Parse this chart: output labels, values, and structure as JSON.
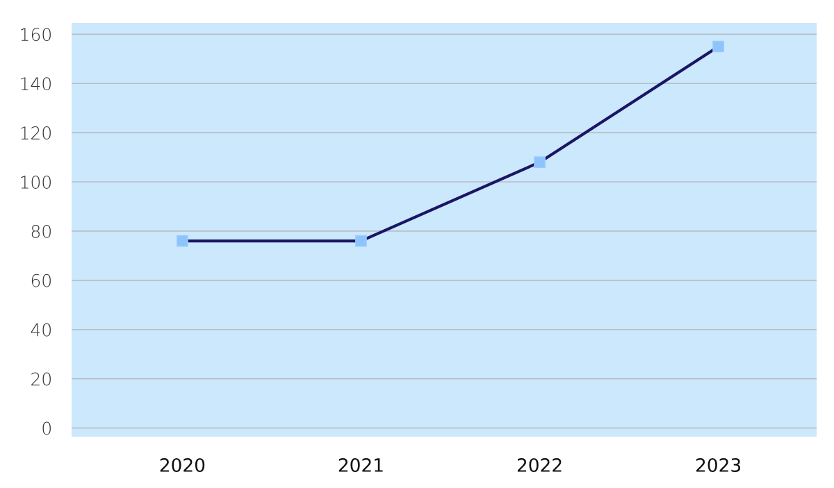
{
  "chart_data": {
    "type": "line",
    "categories": [
      "2020",
      "2021",
      "2022",
      "2023"
    ],
    "series": [
      {
        "color": "#1b1565",
        "values": [
          76,
          76,
          108,
          155
        ]
      }
    ],
    "marker": "square",
    "line_style": "solid",
    "grid": "y",
    "ylim": [
      -3.5,
      164.6
    ],
    "yticks": [
      0,
      20,
      40,
      60,
      80,
      100,
      120,
      140,
      160
    ]
  }
}
